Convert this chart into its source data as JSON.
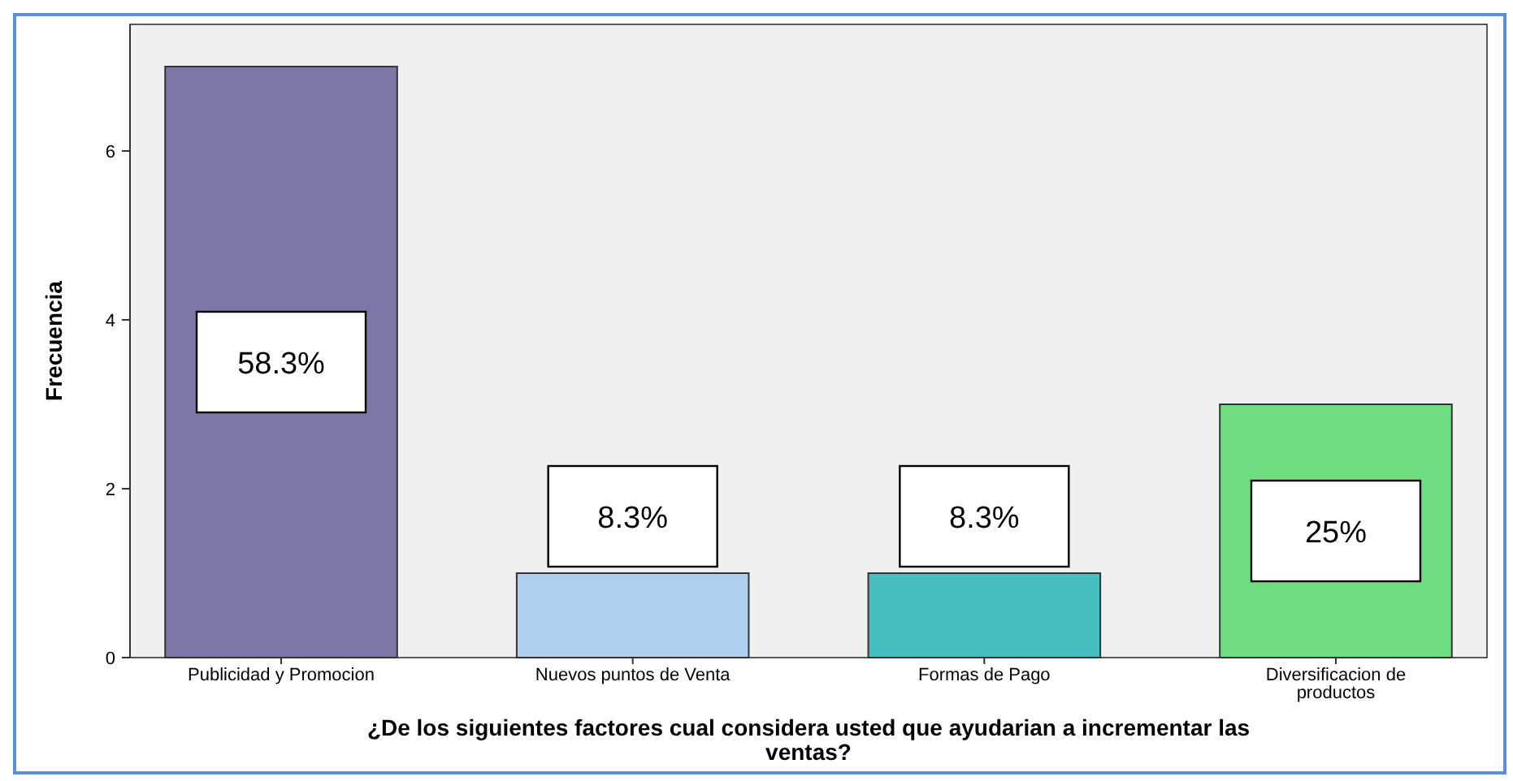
{
  "chart_data": {
    "type": "bar",
    "categories": [
      "Publicidad y Promocion",
      "Nuevos puntos de Venta",
      "Formas de Pago",
      "Diversificacion de productos"
    ],
    "values": [
      7,
      1,
      1,
      3
    ],
    "colors": [
      "#7b78a8",
      "#b0cfee",
      "#47bfc0",
      "#6fdd7f"
    ],
    "annotations": [
      "58.3%",
      "8.3%",
      "8.3%",
      "25%"
    ],
    "ylim": [
      0,
      7.5
    ],
    "yticks": [
      0,
      2,
      4,
      6
    ],
    "grid": false,
    "ylabel": "Frecuencia",
    "xlabel": "¿De los siguientes factores cual considera usted que ayudarian a incrementar las ventas?"
  }
}
